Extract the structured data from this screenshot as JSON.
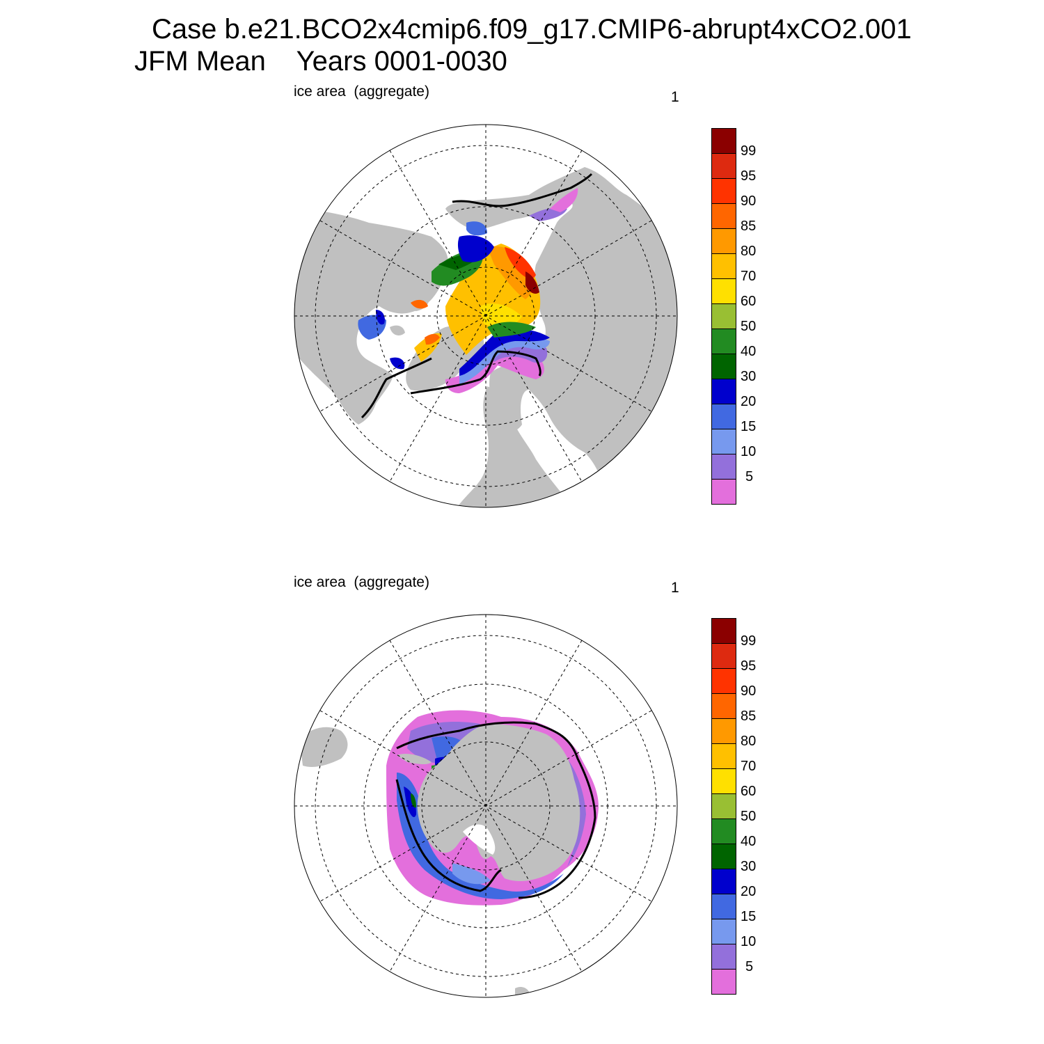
{
  "title": {
    "line1": "Case b.e21.BCO2x4cmip6.f09_g17.CMIP6-abrupt4xCO2.001",
    "line2": "JFM Mean    Years 0001-0030"
  },
  "panels": [
    {
      "label": "ice area  (aggregate)",
      "number": "1",
      "hemisphere": "north"
    },
    {
      "label": "ice area  (aggregate)",
      "number": "1",
      "hemisphere": "south"
    }
  ],
  "colorbar": {
    "labels": [
      "99",
      "95",
      "90",
      "85",
      "80",
      "70",
      "60",
      "50",
      "40",
      "30",
      "20",
      "15",
      "10",
      "5"
    ],
    "colors": [
      "#8b0000",
      "#dd2a10",
      "#ff3300",
      "#ff6600",
      "#ff9900",
      "#ffc000",
      "#ffe000",
      "#99bf33",
      "#228b22",
      "#006400",
      "#0000cd",
      "#4169e1",
      "#7799ee",
      "#9370db",
      "#e36fdc"
    ]
  },
  "map_colors": {
    "land": "#c0c0c0",
    "ocean": "#ffffff",
    "grid": "#000000"
  }
}
